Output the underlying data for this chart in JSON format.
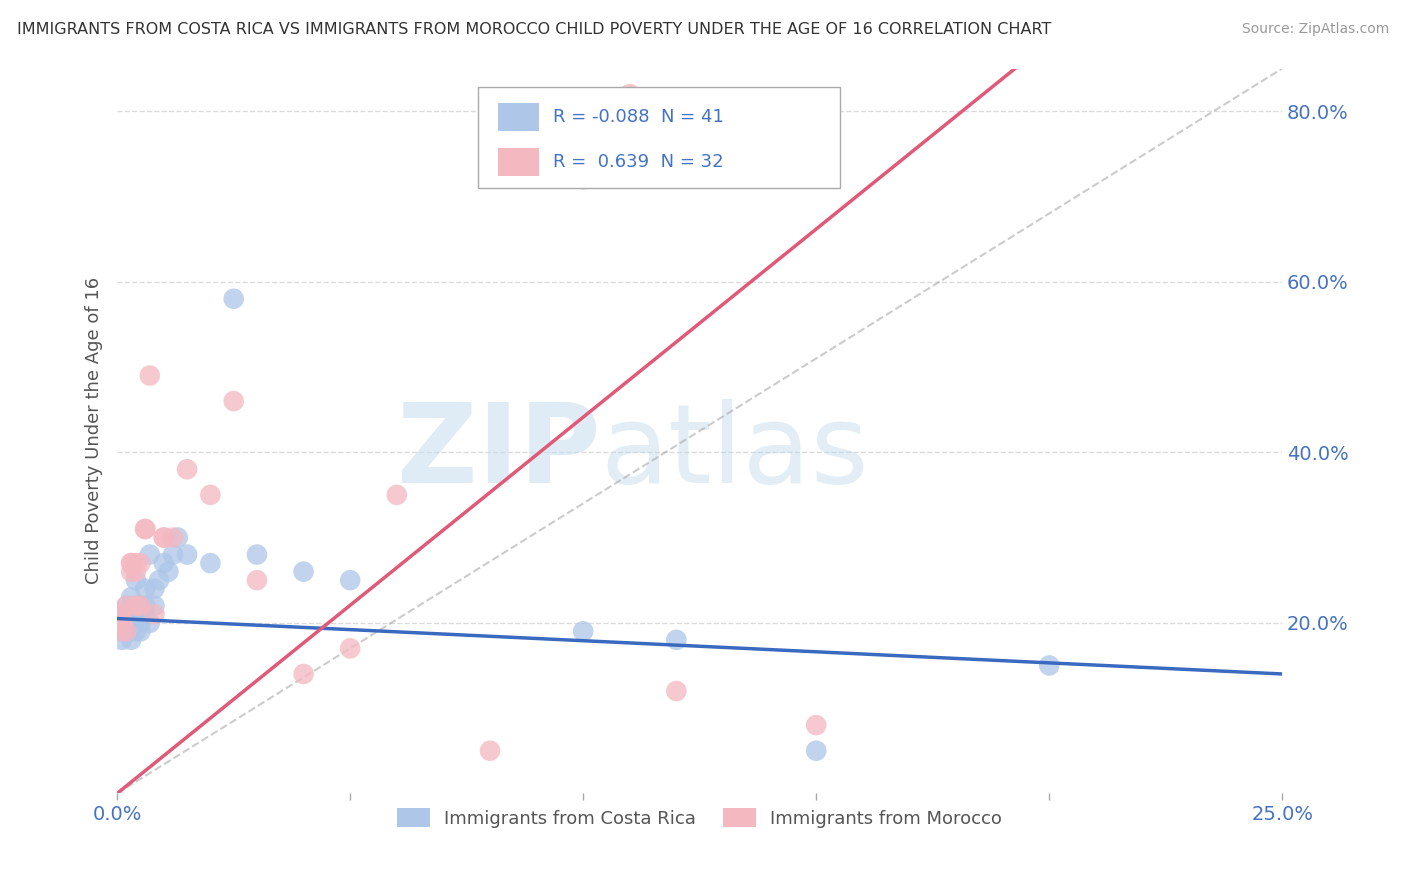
{
  "title": "IMMIGRANTS FROM COSTA RICA VS IMMIGRANTS FROM MOROCCO CHILD POVERTY UNDER THE AGE OF 16 CORRELATION CHART",
  "source": "Source: ZipAtlas.com",
  "ylabel": "Child Poverty Under the Age of 16",
  "xlim": [
    0.0,
    0.25
  ],
  "ylim": [
    0.0,
    0.85
  ],
  "xticks": [
    0.0,
    0.05,
    0.1,
    0.15,
    0.2,
    0.25
  ],
  "xticklabels": [
    "0.0%",
    "",
    "",
    "",
    "",
    "25.0%"
  ],
  "yticks": [
    0.2,
    0.4,
    0.6,
    0.8
  ],
  "yticklabels": [
    "20.0%",
    "40.0%",
    "60.0%",
    "80.0%"
  ],
  "costa_rica_color": "#aec6e8",
  "costa_rica_line_color": "#3a6abf",
  "morocco_color": "#f4b8c1",
  "morocco_line_color": "#e05a78",
  "costa_rica_R": -0.088,
  "costa_rica_N": 41,
  "morocco_R": 0.639,
  "morocco_N": 32,
  "legend_label_1": "Immigrants from Costa Rica",
  "legend_label_2": "Immigrants from Morocco",
  "watermark_zip": "ZIP",
  "watermark_atlas": "atlas",
  "grid_color": "#cccccc",
  "title_color": "#333333",
  "tick_color": "#4472c4",
  "background_color": "#ffffff",
  "costa_rica_x": [
    0.001,
    0.001,
    0.001,
    0.002,
    0.002,
    0.002,
    0.002,
    0.003,
    0.003,
    0.003,
    0.003,
    0.004,
    0.004,
    0.004,
    0.004,
    0.005,
    0.005,
    0.005,
    0.005,
    0.006,
    0.006,
    0.006,
    0.007,
    0.007,
    0.008,
    0.008,
    0.009,
    0.01,
    0.011,
    0.012,
    0.013,
    0.015,
    0.02,
    0.025,
    0.03,
    0.04,
    0.05,
    0.1,
    0.12,
    0.15,
    0.2
  ],
  "costa_rica_y": [
    0.18,
    0.2,
    0.19,
    0.21,
    0.19,
    0.2,
    0.22,
    0.2,
    0.23,
    0.18,
    0.21,
    0.22,
    0.21,
    0.19,
    0.25,
    0.2,
    0.21,
    0.22,
    0.19,
    0.24,
    0.22,
    0.21,
    0.28,
    0.2,
    0.24,
    0.22,
    0.25,
    0.27,
    0.26,
    0.28,
    0.3,
    0.28,
    0.27,
    0.58,
    0.28,
    0.26,
    0.25,
    0.19,
    0.18,
    0.05,
    0.15
  ],
  "morocco_x": [
    0.001,
    0.001,
    0.001,
    0.002,
    0.002,
    0.003,
    0.003,
    0.003,
    0.004,
    0.004,
    0.004,
    0.005,
    0.005,
    0.006,
    0.006,
    0.007,
    0.008,
    0.01,
    0.01,
    0.012,
    0.015,
    0.02,
    0.025,
    0.03,
    0.04,
    0.05,
    0.06,
    0.08,
    0.1,
    0.11,
    0.12,
    0.15
  ],
  "morocco_y": [
    0.19,
    0.2,
    0.21,
    0.22,
    0.19,
    0.27,
    0.27,
    0.26,
    0.26,
    0.27,
    0.22,
    0.27,
    0.22,
    0.31,
    0.31,
    0.49,
    0.21,
    0.3,
    0.3,
    0.3,
    0.38,
    0.35,
    0.46,
    0.25,
    0.14,
    0.17,
    0.35,
    0.05,
    0.72,
    0.82,
    0.12,
    0.08
  ],
  "cr_trend_x0": 0.0,
  "cr_trend_y0": 0.205,
  "cr_trend_x1": 0.25,
  "cr_trend_y1": 0.14,
  "mo_trend_x0": 0.0,
  "mo_trend_y0": 0.0,
  "mo_trend_x1": 0.17,
  "mo_trend_y1": 0.75
}
